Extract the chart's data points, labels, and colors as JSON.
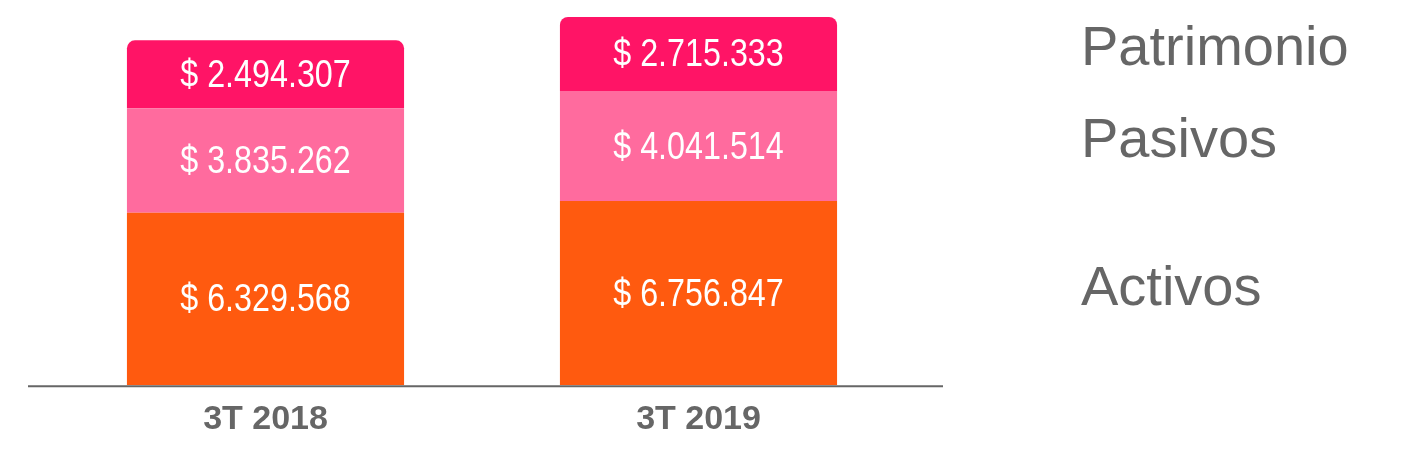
{
  "chart_data": {
    "type": "bar",
    "stacked": true,
    "categories": [
      "3T 2018",
      "3T 2019"
    ],
    "series": [
      {
        "name": "Activos",
        "color": "#ff5a0f",
        "values": [
          6329568,
          6756847
        ],
        "value_labels": [
          "$ 6.329.568",
          "$ 6.756.847"
        ]
      },
      {
        "name": "Pasivos",
        "color": "#ff6b9e",
        "values": [
          3835262,
          4041514
        ],
        "value_labels": [
          "$ 3.835.262",
          "$ 4.041.514"
        ]
      },
      {
        "name": "Patrimonio",
        "color": "#ff1466",
        "values": [
          2494307,
          2715333
        ],
        "value_labels": [
          "$ 2.494.307",
          "$ 2.715.333"
        ]
      }
    ],
    "legend": "right",
    "grid": false,
    "tick_labels": "x"
  }
}
